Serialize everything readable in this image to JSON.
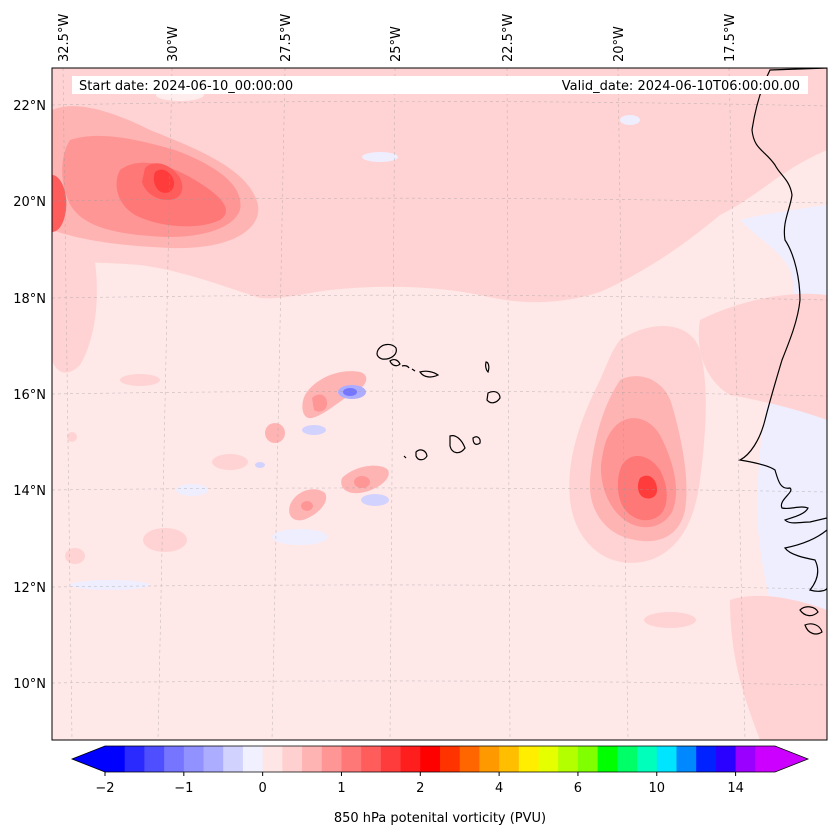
{
  "map": {
    "start_date": "Start date: 2024-06-10_00:00:00",
    "valid_date": "Valid_date: 2024-06-10T06:00:00.00",
    "lat_labels": [
      "22°N",
      "20°N",
      "18°N",
      "16°N",
      "14°N",
      "12°N",
      "10°N"
    ],
    "lon_labels": [
      "32.5°W",
      "30°W",
      "27.5°W",
      "25°W",
      "22.5°W",
      "20°W",
      "17.5°W"
    ],
    "variable": "850 hPa potential vorticity",
    "extent": {
      "lon_min": -32.5,
      "lon_max": -15.3,
      "lat_min": 9.0,
      "lat_max": 22.7
    }
  },
  "colorbar": {
    "label": "850 hPa potenital vorticity (PVU)",
    "tick_labels": [
      "−2",
      "−1",
      "0",
      "1",
      "2",
      "4",
      "6",
      "10",
      "14"
    ],
    "levels": [
      -2,
      -1.75,
      -1.5,
      -1.25,
      -1,
      -0.75,
      -0.5,
      -0.25,
      0,
      0.25,
      0.5,
      0.75,
      1,
      1.25,
      1.5,
      1.75,
      2,
      2.5,
      3,
      3.5,
      4,
      4.5,
      5,
      5.5,
      6,
      7,
      8,
      9,
      10,
      11,
      12,
      13,
      14,
      15
    ],
    "colors": [
      "#0000ff",
      "#2a2aff",
      "#4f4fff",
      "#7575ff",
      "#9191ff",
      "#adadff",
      "#d2d2ff",
      "#f0f0ff",
      "#ffe6e6",
      "#ffd0d0",
      "#ffb4b4",
      "#ff9696",
      "#ff7878",
      "#ff5c5c",
      "#ff3c3c",
      "#ff1e1e",
      "#ff0000",
      "#ff3300",
      "#ff6600",
      "#ff9900",
      "#ffbf00",
      "#ffee00",
      "#e6ff00",
      "#b3ff00",
      "#80ff00",
      "#00ff00",
      "#00ff66",
      "#00ffbb",
      "#00e5ff",
      "#0088ff",
      "#0022ff",
      "#2a00ff",
      "#9900ff",
      "#cc00ff"
    ],
    "extend_min_color": "#0000ff",
    "extend_max_color": "#cc00ff"
  }
}
